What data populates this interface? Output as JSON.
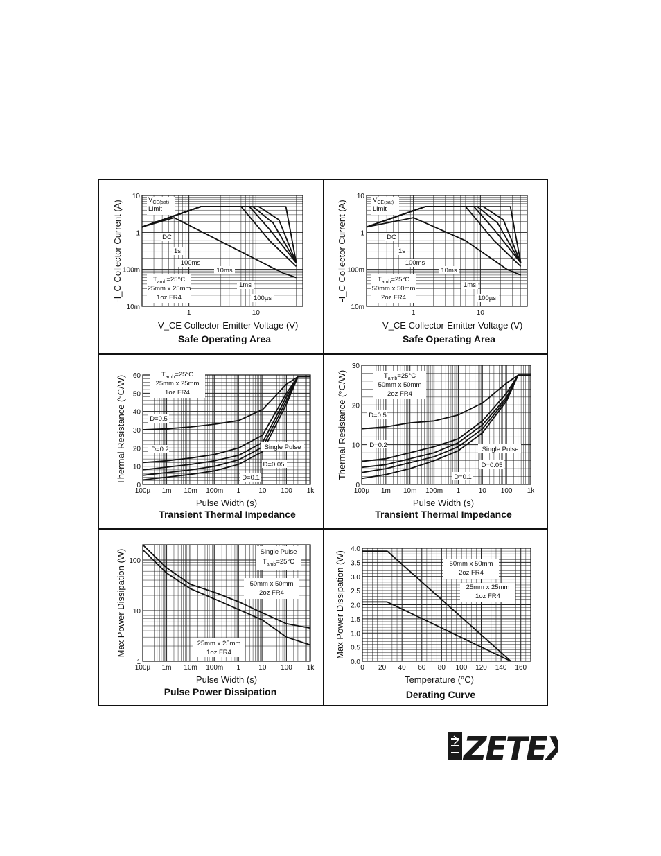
{
  "logo": {
    "text": "ZETEX"
  },
  "chart_data": [
    {
      "id": "soa1",
      "type": "line",
      "title": "Safe Operating Area",
      "xlabel": "-V_CE  Collector-Emitter Voltage (V)",
      "ylabel": "-I_C  Collector Current (A)",
      "xscale": "log",
      "yscale": "log",
      "xlim": [
        0.2,
        50
      ],
      "ylim": [
        0.01,
        10
      ],
      "xticks": [
        {
          "v": 1,
          "l": "1"
        },
        {
          "v": 10,
          "l": "10"
        }
      ],
      "yticks": [
        {
          "v": 0.01,
          "l": "10m"
        },
        {
          "v": 0.1,
          "l": "100m"
        },
        {
          "v": 1,
          "l": "1"
        },
        {
          "v": 10,
          "l": "10"
        }
      ],
      "series": [
        {
          "name": "DC",
          "x": [
            0.2,
            0.6,
            6,
            25,
            40
          ],
          "y": [
            1.4,
            2.5,
            0.3,
            0.08,
            0.06
          ]
        },
        {
          "name": "1s",
          "x": [
            0.2,
            1.5,
            6,
            16,
            40
          ],
          "y": [
            1.4,
            5,
            5,
            0.6,
            0.12
          ]
        },
        {
          "name": "100ms",
          "x": [
            0.2,
            1.5,
            8,
            16,
            40
          ],
          "y": [
            1.4,
            5,
            5,
            1.2,
            0.15
          ]
        },
        {
          "name": "10ms",
          "x": [
            0.2,
            1.5,
            9,
            18,
            40
          ],
          "y": [
            1.4,
            5,
            5,
            1.8,
            0.15
          ]
        },
        {
          "name": "1ms",
          "x": [
            0.2,
            1.5,
            11,
            22,
            40
          ],
          "y": [
            1.4,
            5,
            5,
            2.2,
            0.15
          ]
        },
        {
          "name": "100µs",
          "x": [
            0.2,
            1.5,
            28,
            28,
            40
          ],
          "y": [
            1.4,
            5,
            5,
            5,
            0.15
          ]
        }
      ],
      "annotations": [
        "V",
        "CE(sat)",
        "Limit",
        "DC",
        "1s",
        "100ms",
        "10ms",
        "1ms",
        "100µs"
      ],
      "condition": {
        "t": "T",
        "sub": "amb",
        "rest": "=25°C",
        "l2": "25mm x 25mm",
        "l3": "1oz FR4"
      }
    },
    {
      "id": "soa2",
      "type": "line",
      "title": "Safe Operating Area",
      "xlabel": "-V_CE  Collector-Emitter Voltage (V)",
      "ylabel": "-I_C  Collector Current (A)",
      "xscale": "log",
      "yscale": "log",
      "xlim": [
        0.2,
        50
      ],
      "ylim": [
        0.01,
        10
      ],
      "xticks": [
        {
          "v": 1,
          "l": "1"
        },
        {
          "v": 10,
          "l": "10"
        }
      ],
      "yticks": [
        {
          "v": 0.01,
          "l": "10m"
        },
        {
          "v": 0.1,
          "l": "100m"
        },
        {
          "v": 1,
          "l": "1"
        },
        {
          "v": 10,
          "l": "10"
        }
      ],
      "series": [
        {
          "name": "DC",
          "x": [
            0.2,
            1,
            6,
            25,
            40
          ],
          "y": [
            1.4,
            2.5,
            0.6,
            0.1,
            0.07
          ]
        },
        {
          "name": "1s",
          "x": [
            0.2,
            1.5,
            6,
            16,
            40
          ],
          "y": [
            1.4,
            5,
            5,
            0.6,
            0.12
          ]
        },
        {
          "name": "100ms",
          "x": [
            0.2,
            1.5,
            8,
            16,
            40
          ],
          "y": [
            1.4,
            5,
            5,
            1.2,
            0.15
          ]
        },
        {
          "name": "10ms",
          "x": [
            0.2,
            1.5,
            9,
            18,
            40
          ],
          "y": [
            1.4,
            5,
            5,
            1.8,
            0.15
          ]
        },
        {
          "name": "1ms",
          "x": [
            0.2,
            1.5,
            11,
            22,
            40
          ],
          "y": [
            1.4,
            5,
            5,
            2.2,
            0.15
          ]
        },
        {
          "name": "100µs",
          "x": [
            0.2,
            1.5,
            28,
            28,
            40
          ],
          "y": [
            1.4,
            5,
            5,
            5,
            0.15
          ]
        }
      ],
      "annotations": [
        "V",
        "CE(sat)",
        "Limit",
        "DC",
        "1s",
        "100ms",
        "10ms",
        "1ms",
        "100µs"
      ],
      "condition": {
        "t": "T",
        "sub": "amb",
        "rest": "=25°C",
        "l2": "50mm x 50mm",
        "l3": "2oz FR4"
      }
    },
    {
      "id": "tti1",
      "type": "line",
      "title": "Transient Thermal Impedance",
      "xlabel": "Pulse Width (s)",
      "ylabel": "Thermal Resistance (°C/W)",
      "xscale": "log",
      "yscale": "linear",
      "xlim": [
        0.0001,
        1000
      ],
      "ylim": [
        0,
        60
      ],
      "xticks": [
        {
          "v": 0.0001,
          "l": "100µ"
        },
        {
          "v": 0.001,
          "l": "1m"
        },
        {
          "v": 0.01,
          "l": "10m"
        },
        {
          "v": 0.1,
          "l": "100m"
        },
        {
          "v": 1,
          "l": "1"
        },
        {
          "v": 10,
          "l": "10"
        },
        {
          "v": 100,
          "l": "100"
        },
        {
          "v": 1000,
          "l": "1k"
        }
      ],
      "yticks": [
        {
          "v": 0,
          "l": "0"
        },
        {
          "v": 10,
          "l": "10"
        },
        {
          "v": 20,
          "l": "20"
        },
        {
          "v": 30,
          "l": "30"
        },
        {
          "v": 40,
          "l": "40"
        },
        {
          "v": 50,
          "l": "50"
        },
        {
          "v": 60,
          "l": "60"
        }
      ],
      "series": [
        {
          "name": "D=0.5",
          "x": [
            0.0001,
            0.001,
            0.01,
            0.1,
            1,
            10,
            100,
            300,
            1000
          ],
          "y": [
            30,
            30.5,
            31.5,
            33,
            35,
            41,
            55,
            59,
            59
          ]
        },
        {
          "name": "D=0.2",
          "x": [
            0.0001,
            0.001,
            0.01,
            0.1,
            1,
            10,
            100,
            300,
            1000
          ],
          "y": [
            12,
            13,
            14.5,
            16.5,
            20,
            27,
            50,
            59,
            59
          ]
        },
        {
          "name": "D=0.1",
          "x": [
            0.0001,
            0.001,
            0.01,
            0.1,
            1,
            10,
            100,
            300,
            1000
          ],
          "y": [
            8,
            9.5,
            11,
            13,
            16,
            23,
            48,
            59,
            59
          ]
        },
        {
          "name": "D=0.05",
          "x": [
            0.0001,
            0.001,
            0.01,
            0.1,
            1,
            10,
            100,
            300,
            1000
          ],
          "y": [
            5,
            6.5,
            8,
            10,
            13.5,
            20.5,
            46,
            59,
            59
          ]
        },
        {
          "name": "Single Pulse",
          "x": [
            0.0001,
            0.001,
            0.01,
            0.1,
            1,
            10,
            100,
            300,
            1000
          ],
          "y": [
            2.5,
            4,
            5.5,
            7.5,
            11,
            18,
            44,
            59,
            59
          ]
        }
      ],
      "annotations": [
        "D=0.5",
        "D=0.2",
        "D=0.1",
        "D=0.05",
        "Single Pulse"
      ],
      "condition": {
        "t": "T",
        "sub": "amb",
        "rest": "=25°C",
        "l2": "25mm x 25mm",
        "l3": "1oz FR4"
      }
    },
    {
      "id": "tti2",
      "type": "line",
      "title": "Transient Thermal Impedance",
      "xlabel": "Pulse Width (s)",
      "ylabel": "Thermal Resistance (°C/W)",
      "xscale": "log",
      "yscale": "linear",
      "xlim": [
        0.0001,
        1000
      ],
      "ylim": [
        0,
        30
      ],
      "xticks": [
        {
          "v": 0.0001,
          "l": "100µ"
        },
        {
          "v": 0.001,
          "l": "1m"
        },
        {
          "v": 0.01,
          "l": "10m"
        },
        {
          "v": 0.1,
          "l": "100m"
        },
        {
          "v": 1,
          "l": "1"
        },
        {
          "v": 10,
          "l": "10"
        },
        {
          "v": 100,
          "l": "100"
        },
        {
          "v": 1000,
          "l": "1k"
        }
      ],
      "yticks": [
        {
          "v": 0,
          "l": "0"
        },
        {
          "v": 10,
          "l": "10"
        },
        {
          "v": 20,
          "l": "20"
        },
        {
          "v": 30,
          "l": "30"
        }
      ],
      "series": [
        {
          "name": "D=0.5",
          "x": [
            0.0001,
            0.001,
            0.01,
            0.1,
            1,
            10,
            100,
            300,
            1000
          ],
          "y": [
            14,
            14.5,
            15.5,
            16,
            17.5,
            20.5,
            25.5,
            27.5,
            27.5
          ]
        },
        {
          "name": "D=0.2",
          "x": [
            0.0001,
            0.001,
            0.01,
            0.1,
            1,
            10,
            100,
            300,
            1000
          ],
          "y": [
            5.8,
            6.5,
            8,
            9.5,
            11.5,
            16,
            23,
            27.5,
            27.5
          ]
        },
        {
          "name": "D=0.1",
          "x": [
            0.0001,
            0.001,
            0.01,
            0.1,
            1,
            10,
            100,
            300,
            1000
          ],
          "y": [
            4.3,
            5,
            6.5,
            8,
            10.5,
            15,
            22,
            27.5,
            27.5
          ]
        },
        {
          "name": "D=0.05",
          "x": [
            0.0001,
            0.001,
            0.01,
            0.1,
            1,
            10,
            100,
            300,
            1000
          ],
          "y": [
            3,
            4,
            5.5,
            7,
            9.5,
            14,
            21.5,
            27.5,
            27.5
          ]
        },
        {
          "name": "Single Pulse",
          "x": [
            0.0001,
            0.001,
            0.01,
            0.1,
            1,
            10,
            100,
            300,
            1000
          ],
          "y": [
            1.5,
            2.5,
            4,
            6,
            8.5,
            13,
            21,
            27.5,
            27.5
          ]
        }
      ],
      "annotations": [
        "D=0.5",
        "D=0.2",
        "D=0.1",
        "D=0.05",
        "Single Pulse"
      ],
      "condition": {
        "t": "T",
        "sub": "amb",
        "rest": "=25°C",
        "l2": "50mm x 50mm",
        "l3": "2oz FR4"
      }
    },
    {
      "id": "ppd",
      "type": "line",
      "title": "Pulse Power Dissipation",
      "xlabel": "Pulse Width (s)",
      "ylabel": "Max Power Dissipation (W)",
      "xscale": "log",
      "yscale": "log",
      "xlim": [
        0.0001,
        1000
      ],
      "ylim": [
        1,
        200
      ],
      "xticks": [
        {
          "v": 0.0001,
          "l": "100µ"
        },
        {
          "v": 0.001,
          "l": "1m"
        },
        {
          "v": 0.01,
          "l": "10m"
        },
        {
          "v": 0.1,
          "l": "100m"
        },
        {
          "v": 1,
          "l": "1"
        },
        {
          "v": 10,
          "l": "10"
        },
        {
          "v": 100,
          "l": "100"
        },
        {
          "v": 1000,
          "l": "1k"
        }
      ],
      "yticks": [
        {
          "v": 1,
          "l": "1"
        },
        {
          "v": 10,
          "l": "10"
        },
        {
          "v": 100,
          "l": "100"
        }
      ],
      "series": [
        {
          "name": "50mm x 50mm 2oz FR4",
          "x": [
            0.0001,
            0.001,
            0.01,
            0.1,
            1,
            10,
            100,
            1000
          ],
          "y": [
            200,
            70,
            33,
            23,
            15,
            9,
            5.5,
            4.5
          ]
        },
        {
          "name": "25mm x 25mm 1oz FR4",
          "x": [
            0.0001,
            0.001,
            0.01,
            0.1,
            1,
            10,
            100,
            1000
          ],
          "y": [
            160,
            55,
            27,
            17,
            10.5,
            6.5,
            3,
            2.1
          ]
        }
      ],
      "annotations": [
        "Single Pulse",
        "50mm x 50mm",
        "2oz FR4",
        "25mm x 25mm",
        "1oz FR4"
      ],
      "condition": {
        "t": "T",
        "sub": "amb",
        "rest": "=25°C"
      }
    },
    {
      "id": "derate",
      "type": "line",
      "title": "Derating Curve",
      "xlabel": "Temperature (°C)",
      "ylabel": "Max Power Dissipation (W)",
      "xscale": "linear",
      "yscale": "linear",
      "xlim": [
        0,
        170
      ],
      "ylim": [
        0,
        4.0
      ],
      "xticks": [
        {
          "v": 0,
          "l": "0"
        },
        {
          "v": 20,
          "l": "20"
        },
        {
          "v": 40,
          "l": "40"
        },
        {
          "v": 60,
          "l": "60"
        },
        {
          "v": 80,
          "l": "80"
        },
        {
          "v": 100,
          "l": "100"
        },
        {
          "v": 120,
          "l": "120"
        },
        {
          "v": 140,
          "l": "140"
        },
        {
          "v": 160,
          "l": "160"
        }
      ],
      "yticks": [
        {
          "v": 0,
          "l": "0.0"
        },
        {
          "v": 0.5,
          "l": "0.5"
        },
        {
          "v": 1.0,
          "l": "1.0"
        },
        {
          "v": 1.5,
          "l": "1.5"
        },
        {
          "v": 2.0,
          "l": "2.0"
        },
        {
          "v": 2.5,
          "l": "2.5"
        },
        {
          "v": 3.0,
          "l": "3.0"
        },
        {
          "v": 3.5,
          "l": "3.5"
        },
        {
          "v": 4.0,
          "l": "4.0"
        }
      ],
      "series": [
        {
          "name": "50mm x 50mm 2oz FR4",
          "x": [
            0,
            25,
            150
          ],
          "y": [
            3.9,
            3.9,
            0
          ]
        },
        {
          "name": "25mm x 25mm 1oz FR4",
          "x": [
            0,
            25,
            150
          ],
          "y": [
            2.1,
            2.1,
            0
          ]
        }
      ],
      "annotations": [
        "50mm x 50mm",
        "2oz FR4",
        "25mm x 25mm",
        "1oz FR4"
      ]
    }
  ]
}
